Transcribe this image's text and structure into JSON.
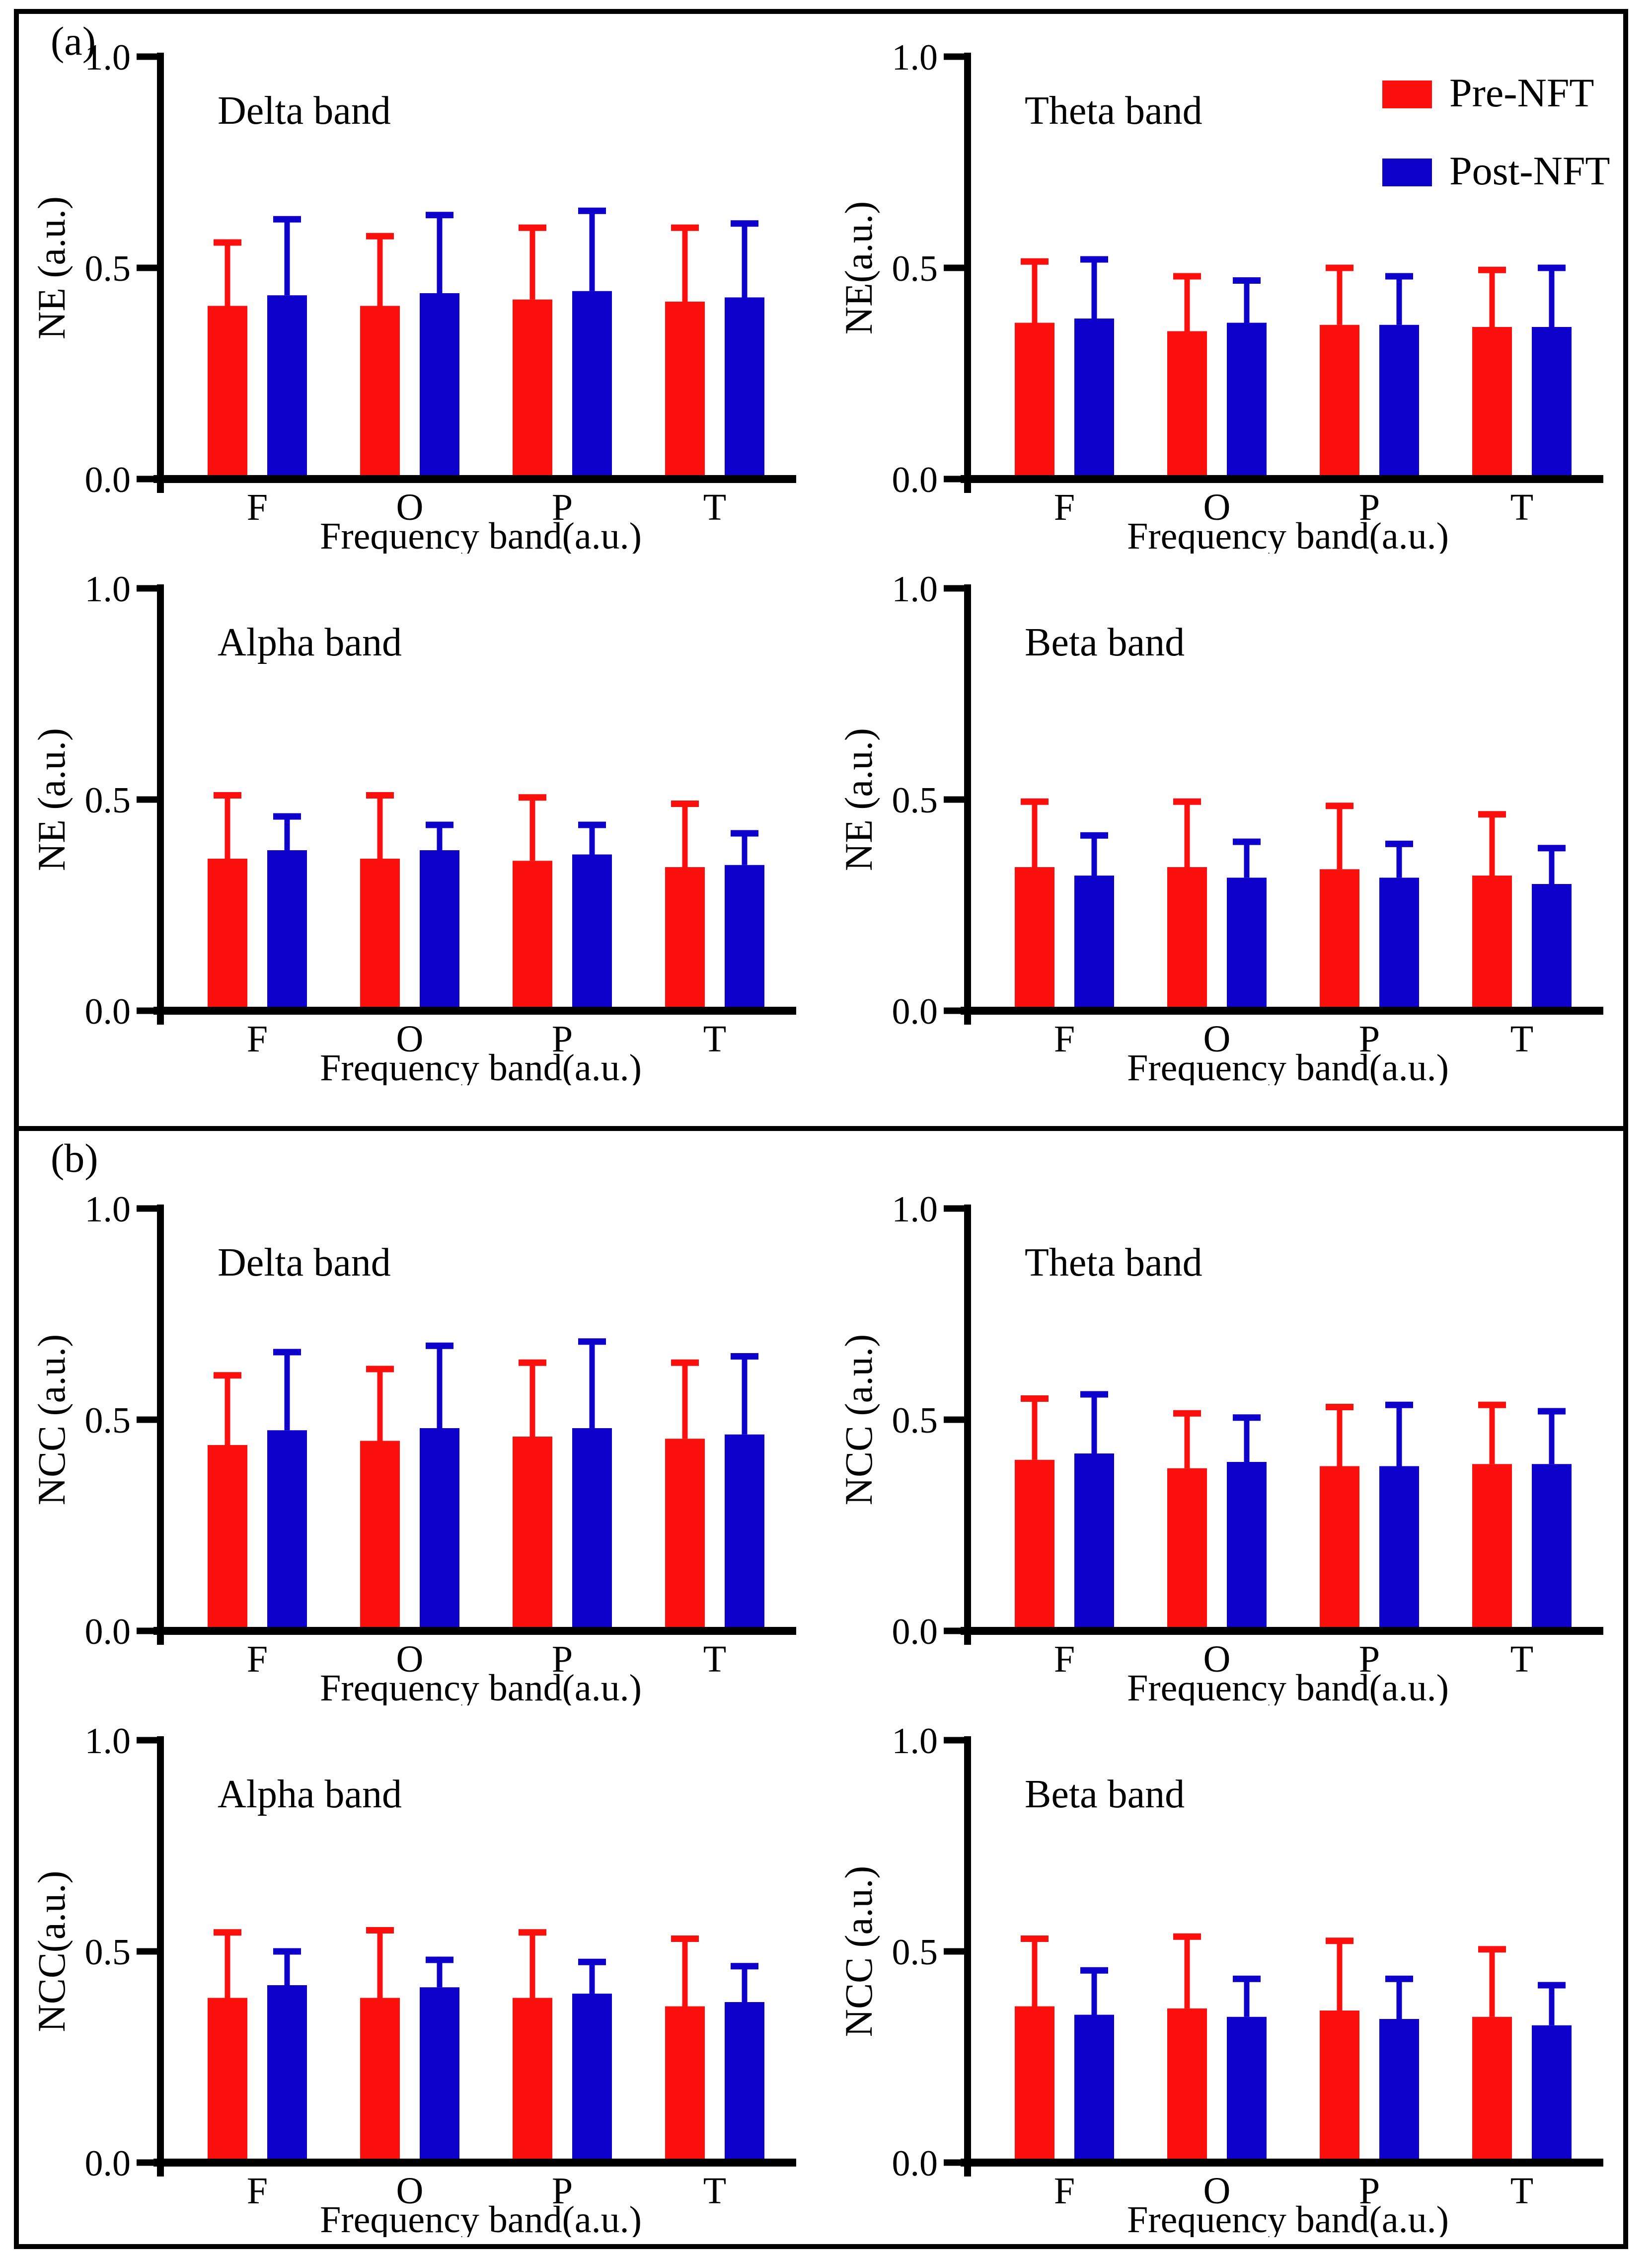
{
  "figure": {
    "panel_a_label": "(a)",
    "panel_b_label": "(b)"
  },
  "legend": {
    "position": "top-right-of-theta-ne-chart",
    "items": [
      {
        "label": "Pre-NFT",
        "color": "#fb100d"
      },
      {
        "label": "Post-NFT",
        "color": "#0d00cb"
      }
    ]
  },
  "colors": {
    "pre_nft": "#fb100d",
    "post_nft": "#0d00cb",
    "axis": "#000000",
    "background": "#ffffff"
  },
  "chart_data": [
    {
      "type": "bar",
      "panel": "a",
      "title": "Delta band",
      "ylabel": "NE (a.u.)",
      "xlabel": "Frequency band(a.u.)",
      "categories": [
        "F",
        "O",
        "P",
        "T"
      ],
      "ylim": [
        0,
        1.0
      ],
      "yticks": [
        0.0,
        0.5,
        1.0
      ],
      "ytick_labels": [
        "0.0",
        "0.5",
        "1.0"
      ],
      "grid": false,
      "show_legend": false,
      "error_bars": "upper-sd",
      "series": [
        {
          "name": "Pre-NFT",
          "color": "#fb100d",
          "values": [
            0.41,
            0.41,
            0.425,
            0.42
          ],
          "errors": [
            0.15,
            0.165,
            0.17,
            0.175
          ]
        },
        {
          "name": "Post-NFT",
          "color": "#0d00cb",
          "values": [
            0.435,
            0.44,
            0.445,
            0.43
          ],
          "errors": [
            0.18,
            0.185,
            0.19,
            0.175
          ]
        }
      ]
    },
    {
      "type": "bar",
      "panel": "a",
      "title": "Theta band",
      "ylabel": "NE(a.u.)",
      "xlabel": "Frequency band(a.u.)",
      "categories": [
        "F",
        "O",
        "P",
        "T"
      ],
      "ylim": [
        0,
        1.0
      ],
      "yticks": [
        0.0,
        0.5,
        1.0
      ],
      "ytick_labels": [
        "0.0",
        "0.5",
        "1.0"
      ],
      "grid": false,
      "show_legend": true,
      "error_bars": "upper-sd",
      "series": [
        {
          "name": "Pre-NFT",
          "color": "#fb100d",
          "values": [
            0.37,
            0.35,
            0.365,
            0.36
          ],
          "errors": [
            0.145,
            0.13,
            0.135,
            0.135
          ]
        },
        {
          "name": "Post-NFT",
          "color": "#0d00cb",
          "values": [
            0.38,
            0.37,
            0.365,
            0.36
          ],
          "errors": [
            0.14,
            0.1,
            0.115,
            0.14
          ]
        }
      ]
    },
    {
      "type": "bar",
      "panel": "a",
      "title": "Alpha band",
      "ylabel": "NE (a.u.)",
      "xlabel": "Frequency band(a.u.)",
      "categories": [
        "F",
        "O",
        "P",
        "T"
      ],
      "ylim": [
        0,
        1.0
      ],
      "yticks": [
        0.0,
        0.5,
        1.0
      ],
      "ytick_labels": [
        "0.0",
        "0.5",
        "1.0"
      ],
      "grid": false,
      "show_legend": false,
      "error_bars": "upper-sd",
      "series": [
        {
          "name": "Pre-NFT",
          "color": "#fb100d",
          "values": [
            0.36,
            0.36,
            0.355,
            0.34
          ],
          "errors": [
            0.15,
            0.15,
            0.15,
            0.15
          ]
        },
        {
          "name": "Post-NFT",
          "color": "#0d00cb",
          "values": [
            0.38,
            0.38,
            0.37,
            0.345
          ],
          "errors": [
            0.08,
            0.06,
            0.07,
            0.075
          ]
        }
      ]
    },
    {
      "type": "bar",
      "panel": "a",
      "title": "Beta band",
      "ylabel": "NE (a.u.)",
      "xlabel": "Frequency band(a.u.)",
      "categories": [
        "F",
        "O",
        "P",
        "T"
      ],
      "ylim": [
        0,
        1.0
      ],
      "yticks": [
        0.0,
        0.5,
        1.0
      ],
      "ytick_labels": [
        "0.0",
        "0.5",
        "1.0"
      ],
      "grid": false,
      "show_legend": false,
      "error_bars": "upper-sd",
      "series": [
        {
          "name": "Pre-NFT",
          "color": "#fb100d",
          "values": [
            0.34,
            0.34,
            0.335,
            0.32
          ],
          "errors": [
            0.155,
            0.155,
            0.15,
            0.145
          ]
        },
        {
          "name": "Post-NFT",
          "color": "#0d00cb",
          "values": [
            0.32,
            0.315,
            0.315,
            0.3
          ],
          "errors": [
            0.095,
            0.085,
            0.08,
            0.085
          ]
        }
      ]
    },
    {
      "type": "bar",
      "panel": "b",
      "title": "Delta band",
      "ylabel": "NCC (a.u.)",
      "xlabel": "Frequency band(a.u.)",
      "categories": [
        "F",
        "O",
        "P",
        "T"
      ],
      "ylim": [
        0,
        1.0
      ],
      "yticks": [
        0.0,
        0.5,
        1.0
      ],
      "ytick_labels": [
        "0.0",
        "0.5",
        "1.0"
      ],
      "grid": false,
      "show_legend": false,
      "error_bars": "upper-sd",
      "series": [
        {
          "name": "Pre-NFT",
          "color": "#fb100d",
          "values": [
            0.44,
            0.45,
            0.46,
            0.455
          ],
          "errors": [
            0.165,
            0.17,
            0.175,
            0.18
          ]
        },
        {
          "name": "Post-NFT",
          "color": "#0d00cb",
          "values": [
            0.475,
            0.48,
            0.48,
            0.465
          ],
          "errors": [
            0.185,
            0.195,
            0.205,
            0.185
          ]
        }
      ]
    },
    {
      "type": "bar",
      "panel": "b",
      "title": "Theta band",
      "ylabel": "NCC (a.u.)",
      "xlabel": "Frequency band(a.u.)",
      "categories": [
        "F",
        "O",
        "P",
        "T"
      ],
      "ylim": [
        0,
        1.0
      ],
      "yticks": [
        0.0,
        0.5,
        1.0
      ],
      "ytick_labels": [
        "0.0",
        "0.5",
        "1.0"
      ],
      "grid": false,
      "show_legend": false,
      "error_bars": "upper-sd",
      "series": [
        {
          "name": "Pre-NFT",
          "color": "#fb100d",
          "values": [
            0.405,
            0.385,
            0.39,
            0.395
          ],
          "errors": [
            0.145,
            0.13,
            0.14,
            0.14
          ]
        },
        {
          "name": "Post-NFT",
          "color": "#0d00cb",
          "values": [
            0.42,
            0.4,
            0.39,
            0.395
          ],
          "errors": [
            0.14,
            0.105,
            0.145,
            0.125
          ]
        }
      ]
    },
    {
      "type": "bar",
      "panel": "b",
      "title": "Alpha band",
      "ylabel": "NCC(a.u.)",
      "xlabel": "Frequency band(a.u.)",
      "categories": [
        "F",
        "O",
        "P",
        "T"
      ],
      "ylim": [
        0,
        1.0
      ],
      "yticks": [
        0.0,
        0.5,
        1.0
      ],
      "ytick_labels": [
        "0.0",
        "0.5",
        "1.0"
      ],
      "grid": false,
      "show_legend": false,
      "error_bars": "upper-sd",
      "series": [
        {
          "name": "Pre-NFT",
          "color": "#fb100d",
          "values": [
            0.39,
            0.39,
            0.39,
            0.37
          ],
          "errors": [
            0.155,
            0.16,
            0.155,
            0.16
          ]
        },
        {
          "name": "Post-NFT",
          "color": "#0d00cb",
          "values": [
            0.42,
            0.415,
            0.4,
            0.38
          ],
          "errors": [
            0.08,
            0.065,
            0.075,
            0.085
          ]
        }
      ]
    },
    {
      "type": "bar",
      "panel": "b",
      "title": "Beta band",
      "ylabel": "NCC (a.u.)",
      "xlabel": "Frequency band(a.u.)",
      "categories": [
        "F",
        "O",
        "P",
        "T"
      ],
      "ylim": [
        0,
        1.0
      ],
      "yticks": [
        0.0,
        0.5,
        1.0
      ],
      "ytick_labels": [
        "0.0",
        "0.5",
        "1.0"
      ],
      "grid": false,
      "show_legend": false,
      "error_bars": "upper-sd",
      "series": [
        {
          "name": "Pre-NFT",
          "color": "#fb100d",
          "values": [
            0.37,
            0.365,
            0.36,
            0.345
          ],
          "errors": [
            0.16,
            0.17,
            0.165,
            0.16
          ]
        },
        {
          "name": "Post-NFT",
          "color": "#0d00cb",
          "values": [
            0.35,
            0.345,
            0.34,
            0.325
          ],
          "errors": [
            0.105,
            0.09,
            0.095,
            0.095
          ]
        }
      ]
    }
  ]
}
